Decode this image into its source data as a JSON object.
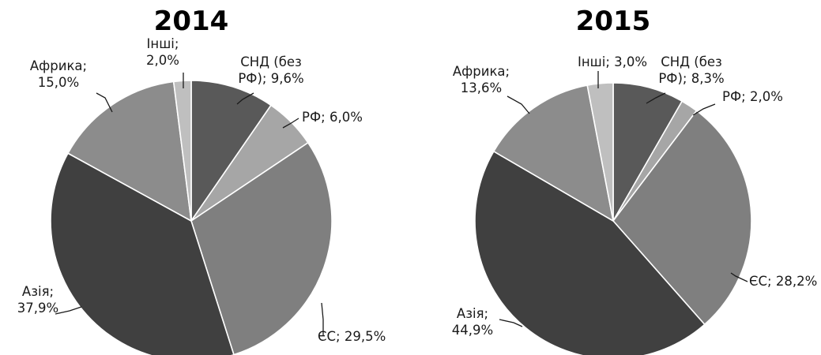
{
  "chart_data": [
    {
      "type": "pie",
      "title": "2014",
      "slices": [
        {
          "label_lines": [
            "СНД (без",
            "РФ); 9,6%"
          ],
          "category": "СНД (без РФ)",
          "value": 9.6,
          "color": "#595959"
        },
        {
          "label_lines": [
            "РФ; 6,0%"
          ],
          "category": "РФ",
          "value": 6.0,
          "color": "#a6a6a6"
        },
        {
          "label_lines": [
            "ЄС; 29,5%"
          ],
          "category": "ЄС",
          "value": 29.5,
          "color": "#7f7f7f"
        },
        {
          "label_lines": [
            "Азія;",
            "37,9%"
          ],
          "category": "Азія",
          "value": 37.9,
          "color": "#404040"
        },
        {
          "label_lines": [
            "Африка;",
            "15,0%"
          ],
          "category": "Африка",
          "value": 15.0,
          "color": "#8c8c8c"
        },
        {
          "label_lines": [
            "Інші;",
            "2,0%"
          ],
          "category": "Інші",
          "value": 2.0,
          "color": "#bfbfbf"
        }
      ]
    },
    {
      "type": "pie",
      "title": "2015",
      "slices": [
        {
          "label_lines": [
            "СНД (без",
            "РФ); 8,3%"
          ],
          "category": "СНД (без РФ)",
          "value": 8.3,
          "color": "#595959"
        },
        {
          "label_lines": [
            "РФ; 2,0%"
          ],
          "category": "РФ",
          "value": 2.0,
          "color": "#a6a6a6"
        },
        {
          "label_lines": [
            "ЄС; 28,2%"
          ],
          "category": "ЄС",
          "value": 28.2,
          "color": "#7f7f7f"
        },
        {
          "label_lines": [
            "Азія;",
            "44,9%"
          ],
          "category": "Азія",
          "value": 44.9,
          "color": "#404040"
        },
        {
          "label_lines": [
            "Африка;",
            "13,6%"
          ],
          "category": "Африка",
          "value": 13.6,
          "color": "#8c8c8c"
        },
        {
          "label_lines": [
            "Інші; 3,0%"
          ],
          "category": "Інші",
          "value": 3.0,
          "color": "#bfbfbf"
        }
      ]
    }
  ]
}
